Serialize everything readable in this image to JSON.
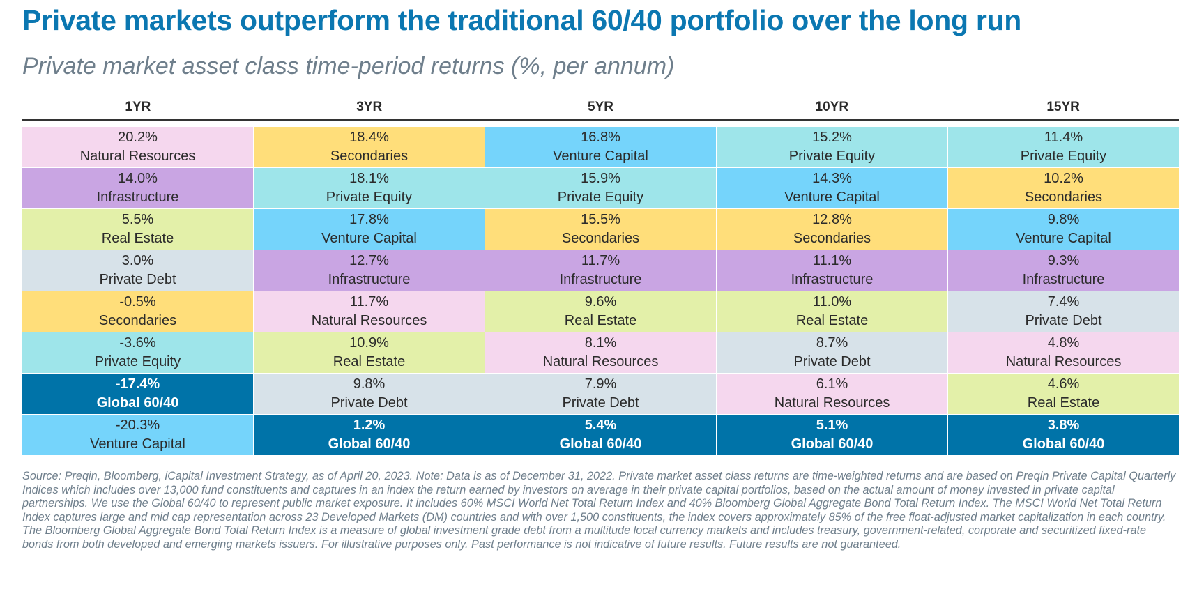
{
  "title": "Private markets outperform the traditional 60/40 portfolio over the long run",
  "subtitle": "Private market asset class time-period returns (%, per annum)",
  "colors": {
    "Natural Resources": "#f5d7ee",
    "Infrastructure": "#c9a5e3",
    "Real Estate": "#e3f0a9",
    "Private Debt": "#d7e2e9",
    "Secondaries": "#ffde7a",
    "Private Equity": "#9ee5ea",
    "Venture Capital": "#75d4fb",
    "Global 60/40": "#0073a8"
  },
  "chart_data": {
    "type": "table",
    "title": "Private markets outperform the traditional 60/40 portfolio over the long run",
    "subtitle": "Private market asset class time-period returns (%, per annum)",
    "columns": [
      {
        "header": "1YR",
        "cells": [
          {
            "value": "20.2%",
            "label": "Natural Resources"
          },
          {
            "value": "14.0%",
            "label": "Infrastructure"
          },
          {
            "value": "5.5%",
            "label": "Real Estate"
          },
          {
            "value": "3.0%",
            "label": "Private Debt"
          },
          {
            "value": "-0.5%",
            "label": "Secondaries"
          },
          {
            "value": "-3.6%",
            "label": "Private Equity"
          },
          {
            "value": "-17.4%",
            "label": "Global 60/40"
          },
          {
            "value": "-20.3%",
            "label": "Venture Capital"
          }
        ]
      },
      {
        "header": "3YR",
        "cells": [
          {
            "value": "18.4%",
            "label": "Secondaries"
          },
          {
            "value": "18.1%",
            "label": "Private Equity"
          },
          {
            "value": "17.8%",
            "label": "Venture Capital"
          },
          {
            "value": "12.7%",
            "label": "Infrastructure"
          },
          {
            "value": "11.7%",
            "label": "Natural Resources"
          },
          {
            "value": "10.9%",
            "label": "Real Estate"
          },
          {
            "value": "9.8%",
            "label": "Private Debt"
          },
          {
            "value": "1.2%",
            "label": "Global 60/40"
          }
        ]
      },
      {
        "header": "5YR",
        "cells": [
          {
            "value": "16.8%",
            "label": "Venture Capital"
          },
          {
            "value": "15.9%",
            "label": "Private Equity"
          },
          {
            "value": "15.5%",
            "label": "Secondaries"
          },
          {
            "value": "11.7%",
            "label": "Infrastructure"
          },
          {
            "value": "9.6%",
            "label": "Real Estate"
          },
          {
            "value": "8.1%",
            "label": "Natural Resources"
          },
          {
            "value": "7.9%",
            "label": "Private Debt"
          },
          {
            "value": "5.4%",
            "label": "Global 60/40"
          }
        ]
      },
      {
        "header": "10YR",
        "cells": [
          {
            "value": "15.2%",
            "label": "Private Equity"
          },
          {
            "value": "14.3%",
            "label": "Venture Capital"
          },
          {
            "value": "12.8%",
            "label": "Secondaries"
          },
          {
            "value": "11.1%",
            "label": "Infrastructure"
          },
          {
            "value": "11.0%",
            "label": "Real Estate"
          },
          {
            "value": "8.7%",
            "label": "Private Debt"
          },
          {
            "value": "6.1%",
            "label": "Natural Resources"
          },
          {
            "value": "5.1%",
            "label": "Global 60/40"
          }
        ]
      },
      {
        "header": "15YR",
        "cells": [
          {
            "value": "11.4%",
            "label": "Private Equity"
          },
          {
            "value": "10.2%",
            "label": "Secondaries"
          },
          {
            "value": "9.8%",
            "label": "Venture Capital"
          },
          {
            "value": "9.3%",
            "label": "Infrastructure"
          },
          {
            "value": "7.4%",
            "label": "Private Debt"
          },
          {
            "value": "4.8%",
            "label": "Natural Resources"
          },
          {
            "value": "4.6%",
            "label": "Real Estate"
          },
          {
            "value": "3.8%",
            "label": "Global 60/40"
          }
        ]
      }
    ]
  },
  "footnote": "Source: Preqin, Bloomberg, iCapital Investment Strategy, as of April 20, 2023. Note: Data is as of December 31, 2022. Private market asset class returns are time-weighted returns and are based on Preqin Private Capital Quarterly Indices which includes over 13,000 fund constituents and captures in an index the return earned by investors on average in their private capital portfolios, based on the actual amount of money invested in private capital partnerships. We use the Global 60/40 to represent public market exposure. It includes 60% MSCI World Net Total Return Index and 40% Bloomberg Global Aggregate Bond Total Return Index. The MSCI World Net Total Return Index captures large and mid cap representation across 23 Developed Markets (DM) countries and with over 1,500 constituents, the index covers approximately 85% of the free float-adjusted market capitalization in each country. The Bloomberg Global Aggregate Bond Total Return Index is a measure of global investment grade debt from a multitude local currency markets and includes treasury, government-related, corporate and securitized fixed-rate bonds from both developed and emerging markets issuers. For illustrative purposes only. Past performance is not indicative of future results. Future results are not guaranteed."
}
